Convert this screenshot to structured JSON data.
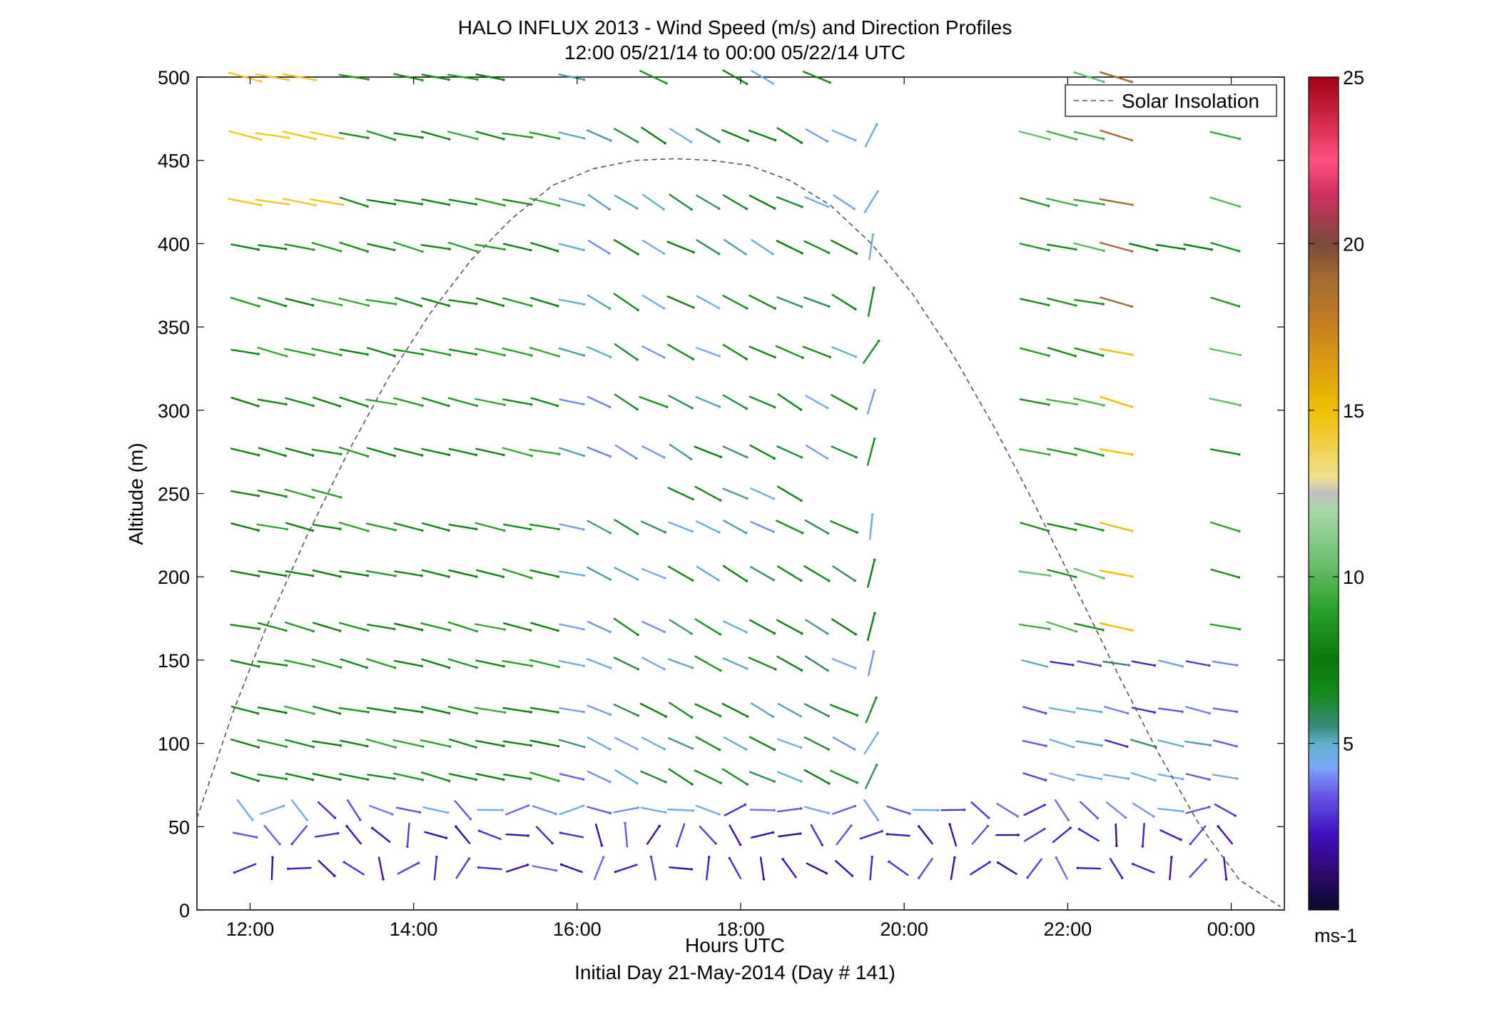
{
  "chart_data": {
    "type": "wind_barb_profile",
    "title": "HALO INFLUX 2013 - Wind Speed (m/s) and Direction Profiles",
    "subtitle": "12:00 05/21/14 to 00:00 05/22/14  UTC",
    "xlabel": "Hours UTC",
    "xlabel2": "Initial Day 21-May-2014 (Day # 141)",
    "ylabel": "Altitude (m)",
    "x_tick_labels": [
      "12:00",
      "14:00",
      "16:00",
      "18:00",
      "20:00",
      "22:00",
      "00:00"
    ],
    "y_ticks": [
      0,
      50,
      100,
      150,
      200,
      250,
      300,
      350,
      400,
      450,
      500
    ],
    "xlim_hours": [
      11.35,
      24.65
    ],
    "ylim": [
      0,
      500
    ],
    "colorbar": {
      "range": [
        0,
        25
      ],
      "ticks": [
        5,
        10,
        15,
        20,
        25
      ],
      "unit": "ms-1",
      "stops": [
        [
          0,
          "#0b0b2e"
        ],
        [
          1,
          "#2a0a66"
        ],
        [
          2.3,
          "#4010c0"
        ],
        [
          3.5,
          "#6a5be8"
        ],
        [
          4.3,
          "#7aa8f5"
        ],
        [
          5,
          "#5fb1c9"
        ],
        [
          5.5,
          "#3a8a7a"
        ],
        [
          6.5,
          "#138a1a"
        ],
        [
          7.5,
          "#0a7a0a"
        ],
        [
          9,
          "#2aa02a"
        ],
        [
          10.5,
          "#6fc06f"
        ],
        [
          12,
          "#a8d8a8"
        ],
        [
          12.5,
          "#c0c0c0"
        ],
        [
          13,
          "#f2e08a"
        ],
        [
          15,
          "#f0c000"
        ],
        [
          17.5,
          "#c88020"
        ],
        [
          19,
          "#a06a30"
        ],
        [
          20,
          "#7a4a3a"
        ],
        [
          21.5,
          "#d03060"
        ],
        [
          22.5,
          "#ff5080"
        ],
        [
          25,
          "#a00010"
        ]
      ]
    },
    "legend": {
      "entries": [
        "Solar Insolation"
      ],
      "placement": "top-right"
    },
    "solar_insolation_curve": {
      "style": "dashed",
      "color": "#555555",
      "x": [
        11.35,
        11.8,
        12.2,
        12.7,
        13.2,
        13.7,
        14.2,
        14.7,
        15.2,
        15.7,
        16.2,
        16.7,
        17.2,
        17.65,
        18.1,
        18.6,
        19.1,
        19.6,
        20.1,
        20.6,
        21.1,
        21.6,
        22.1,
        22.6,
        23.1,
        23.6,
        24.1,
        24.6
      ],
      "y": [
        55,
        120,
        170,
        225,
        275,
        320,
        358,
        390,
        415,
        435,
        445,
        450,
        451,
        450,
        447,
        438,
        423,
        400,
        370,
        333,
        290,
        243,
        193,
        143,
        95,
        52,
        18,
        2
      ]
    },
    "barbs": {
      "description_units": "direction degrees (toward which line extends, screen angle), speed m/s",
      "altitudes": [
        25,
        45,
        60,
        80,
        100,
        120,
        148,
        170,
        202,
        230,
        250,
        275,
        305,
        335,
        365,
        398,
        425,
        465,
        500
      ],
      "time_step_hours": 0.333,
      "time_start": 11.85,
      "time_end": 23.85
    }
  }
}
